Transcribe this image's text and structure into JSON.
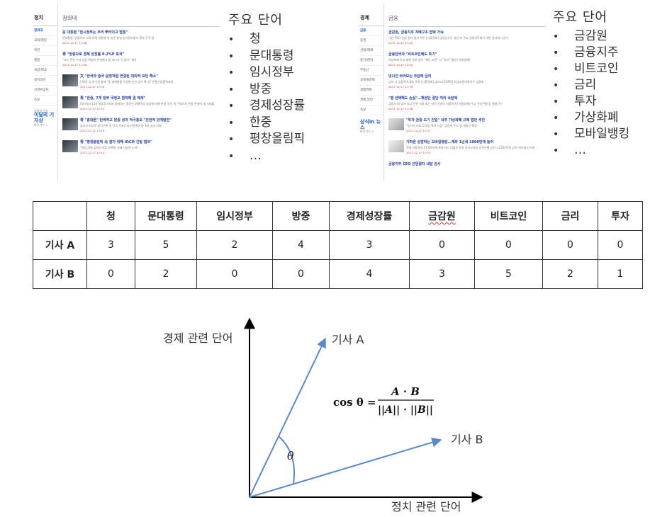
{
  "left_panel": {
    "sidebar_title": "정치",
    "sidebar_items": [
      "청와대",
      "국회/정당",
      "북한",
      "행정",
      "국방/외교",
      "정치일반",
      "선관위공지",
      "속보"
    ],
    "promo_top": "정책의 산실",
    "promo_main": "이달의 기자상",
    "promo_sub": "바로가기 >",
    "section_title": "청와대",
    "articles": [
      {
        "title": "문 대통령 \"임시정부는 우리 뿌리이고 법통\"",
        "body": "문대통령, 방중하고 오며 역대 대통령 첫 방문 충칭 임시정부청사 찾아 간격 합",
        "meta": "2017-12-17 17:48"
      },
      {
        "title": "靑 \"방중으로 경제 성장률 0.2%P 효과\"",
        "body": "\"사드 관련 우리 입장 확실히 전달했고 첫 지나가 것 없어\" 평가",
        "meta": "2017-12-17 17:36"
      },
      {
        "title": "文 \"한국과 중국 운명처럼 연결된 대외적 요인 해소\"",
        "body": "[객원] 심 연기정 통제 \"중 발레컬을 구성해 인천 있어 확 꿈\" 한중산업협력포럼",
        "meta": "2017-12-17 17:34"
      },
      {
        "title": "靑 \"한중, 7개 정부 국정교 협력해 결 체계\"",
        "body": "[의미뉴스] 24 청송루기자와 청와대는 중국인 여행객의 방중에 대해 한중 정식 의 구축으로 한중 관계의 새 시대를",
        "meta": "2017-12-17 17:23"
      },
      {
        "title": "靑 \"홍대론\" 반박하고 방중 성과 적극홍보 \"진전적 관계발전\"",
        "body": "임상선 외국의 창이구축 및 양국 독표간계 저관계여 통 4대 성과 자평",
        "meta": "2017-12-17 17:19"
      },
      {
        "title": "靑 \"평창올림픽 北 참가 위해 IOC와 긴밀 협의\"",
        "body": "\"직접 대화 없지만 IOC 비롯한 국제 다양한 노력\"",
        "meta": "2017-12-17 17:12"
      }
    ]
  },
  "right_panel": {
    "sidebar_title": "경제",
    "sidebar_items": [
      "금융",
      "증권",
      "산업/재계",
      "중기/벤처",
      "부동산",
      "글로벌경제",
      "생활경제",
      "경제 일반",
      "속보"
    ],
    "promo_main": "상식in 뉴스",
    "promo_sub": "바로가기 >",
    "section_title": "금융",
    "articles": [
      {
        "title": "금감원, 금융지주 지배구조 압박 가속",
        "body": "내년 CEO 선임 절차 검사 착수 [서울경제] 금융당국이 내년 초 주요 금융지주회사 대한 검사에 나선다",
        "meta": "2017-12-17 17:40"
      },
      {
        "title": "금융당국자 \"비트코인에도 투기\"",
        "body": "가상화폐 투자 제한 규정 없어 \"제도 마련\" 서 \"투기\" 평판 [서울경제]",
        "meta": "2017-12-17 17:40"
      },
      {
        "title": "빗나간 바라보는 주답에 금리",
        "body": "금리 고 금융위 4.6% 목차 [서울경제] 금리스(COFIX) 지금조달비용지수 금융위",
        "meta": "2017-12-17 17:39"
      },
      {
        "title": "\"평 선택해도 손실\"…채권단 결단 처리 속앞에",
        "body": "금융사 대 빚어 되고 건관 지원 회는 하리 작한다 이용하며 [서울경제] 두고 우리은행 등 채권단이",
        "meta": "2017-12-17 17:38"
      },
      {
        "title": "\"투자 관중 조기 진입\" 내주 가상화폐 규제 법안 추진",
        "body": "\"투자자 보호 투명성 확보 시급\" 금융위 주도 법 개정안 확정",
        "meta": "2017-12-17 17:37"
      },
      {
        "title": "가파른 성장하는 모바일뱅킹…계좌 1년새 1000만개 늘어",
        "body": "전체 이용자의 57.6%만에 8개 카드 대출도 포함 카카오뱅크 신한은행 신한 <2355억원 급격 케이뱅크 커져",
        "meta": "2017-12-17 17:37"
      },
      {
        "title": "금융지주 CEO 선임절차 내달 검사",
        "body": "",
        "meta": ""
      }
    ]
  },
  "keywords_politics": {
    "heading": "주요 단어",
    "items": [
      "청",
      "문대통령",
      "임시정부",
      "방중",
      "경제성장률",
      "한중",
      "평창올림픽",
      "…"
    ]
  },
  "keywords_economy": {
    "heading": "주요 단어",
    "items": [
      "금감원",
      "금융지주",
      "비트코인",
      "금리",
      "투자",
      "가상화폐",
      "모바일뱅킹",
      "…"
    ]
  },
  "table": {
    "columns": [
      "",
      "청",
      "문대통령",
      "임시정부",
      "방중",
      "경제성장률",
      "금감원",
      "비트코인",
      "금리",
      "투자"
    ],
    "rows": [
      {
        "label": "기사 A",
        "values": [
          "3",
          "5",
          "2",
          "4",
          "3",
          "0",
          "0",
          "0",
          "0"
        ]
      },
      {
        "label": "기사 B",
        "values": [
          "0",
          "2",
          "0",
          "0",
          "4",
          "3",
          "5",
          "2",
          "1"
        ]
      }
    ]
  },
  "diagram": {
    "y_axis_label": "경제 관련 단어",
    "x_axis_label": "정치 관련 단어",
    "vector_a_label": "기사 A",
    "vector_b_label": "기사 B",
    "angle_label": "θ",
    "formula_lhs": "cos θ =",
    "formula_numerator": "A · B",
    "formula_denominator": "||A|| · ||B||"
  },
  "colors": {
    "vector": "#5b8ac9",
    "angle_arc": "#5b8ac9",
    "axis": "#000000",
    "article_title": "#22379b",
    "active_sidebar": "#1a57c7",
    "meta_red": "#cc3333"
  }
}
